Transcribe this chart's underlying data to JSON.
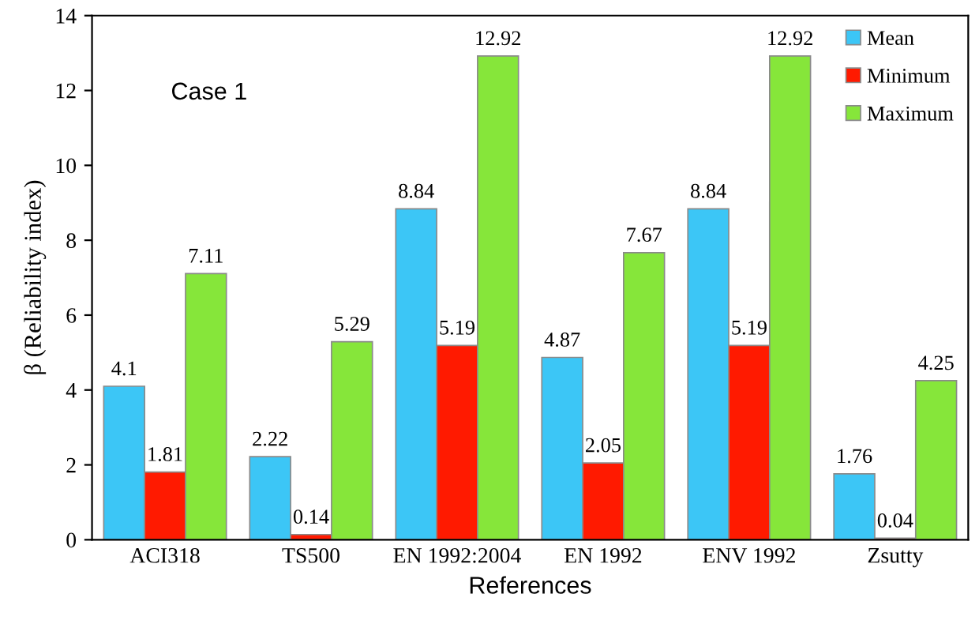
{
  "chart_data": {
    "type": "bar",
    "xlabel": "References",
    "ylabel": "β (Reliability index)",
    "categories": [
      "ACI318",
      "TS500",
      "EN 1992:2004",
      "EN 1992",
      "ENV 1992",
      "Zsutty"
    ],
    "series": [
      {
        "name": "Mean",
        "color": "#3cc6f6",
        "values": [
          4.1,
          2.22,
          8.84,
          4.87,
          8.84,
          1.76
        ]
      },
      {
        "name": "Minimum",
        "color": "#ff1a00",
        "values": [
          1.81,
          0.14,
          5.19,
          2.05,
          5.19,
          0.04
        ]
      },
      {
        "name": "Maximum",
        "color": "#86e63a",
        "values": [
          7.11,
          5.29,
          12.92,
          7.67,
          12.92,
          4.25
        ]
      }
    ],
    "ylim": [
      0,
      14
    ],
    "yticks": [
      0,
      2,
      4,
      6,
      8,
      10,
      12,
      14
    ],
    "grid": false,
    "legend": "top right",
    "data_labels": true,
    "annotations": [
      "Case 1"
    ]
  }
}
